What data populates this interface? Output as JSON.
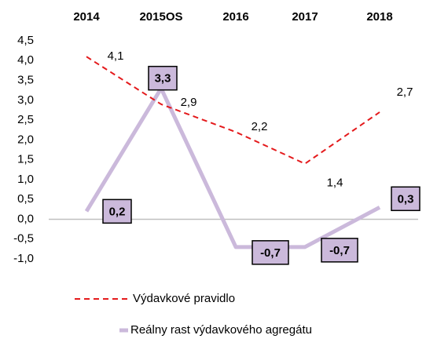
{
  "chart_data": {
    "type": "line",
    "categories": [
      "2014",
      "2015OS",
      "2016",
      "2017",
      "2018"
    ],
    "series": [
      {
        "name": "Výdavkové pravidlo",
        "color": "#e41a1c",
        "style": "dashed",
        "values": [
          4.1,
          2.9,
          2.2,
          1.4,
          2.7
        ],
        "value_labels": [
          "4,1",
          "2,9",
          "2,2",
          "1,4",
          "2,7"
        ]
      },
      {
        "name": "Reálny rast výdavkového agregátu",
        "color": "#cbb9db",
        "style": "solid",
        "values": [
          0.2,
          3.3,
          -0.7,
          -0.7,
          0.3
        ],
        "value_labels": [
          "0,2",
          "3,3",
          "-0,7",
          "-0,7",
          "0,3"
        ]
      }
    ],
    "ylim": [
      -1.0,
      4.5
    ],
    "yticks": [
      {
        "value": -1.0,
        "label": "-1,0"
      },
      {
        "value": -0.5,
        "label": "-0,5"
      },
      {
        "value": 0.0,
        "label": "0,0"
      },
      {
        "value": 0.5,
        "label": "0,5"
      },
      {
        "value": 1.0,
        "label": "1,0"
      },
      {
        "value": 1.5,
        "label": "1,5"
      },
      {
        "value": 2.0,
        "label": "2,0"
      },
      {
        "value": 2.5,
        "label": "2,5"
      },
      {
        "value": 3.0,
        "label": "3,0"
      },
      {
        "value": 3.5,
        "label": "3,5"
      },
      {
        "value": 4.0,
        "label": "4,0"
      },
      {
        "value": 4.5,
        "label": "4,5"
      }
    ],
    "grid": false,
    "legend": "bottom"
  }
}
